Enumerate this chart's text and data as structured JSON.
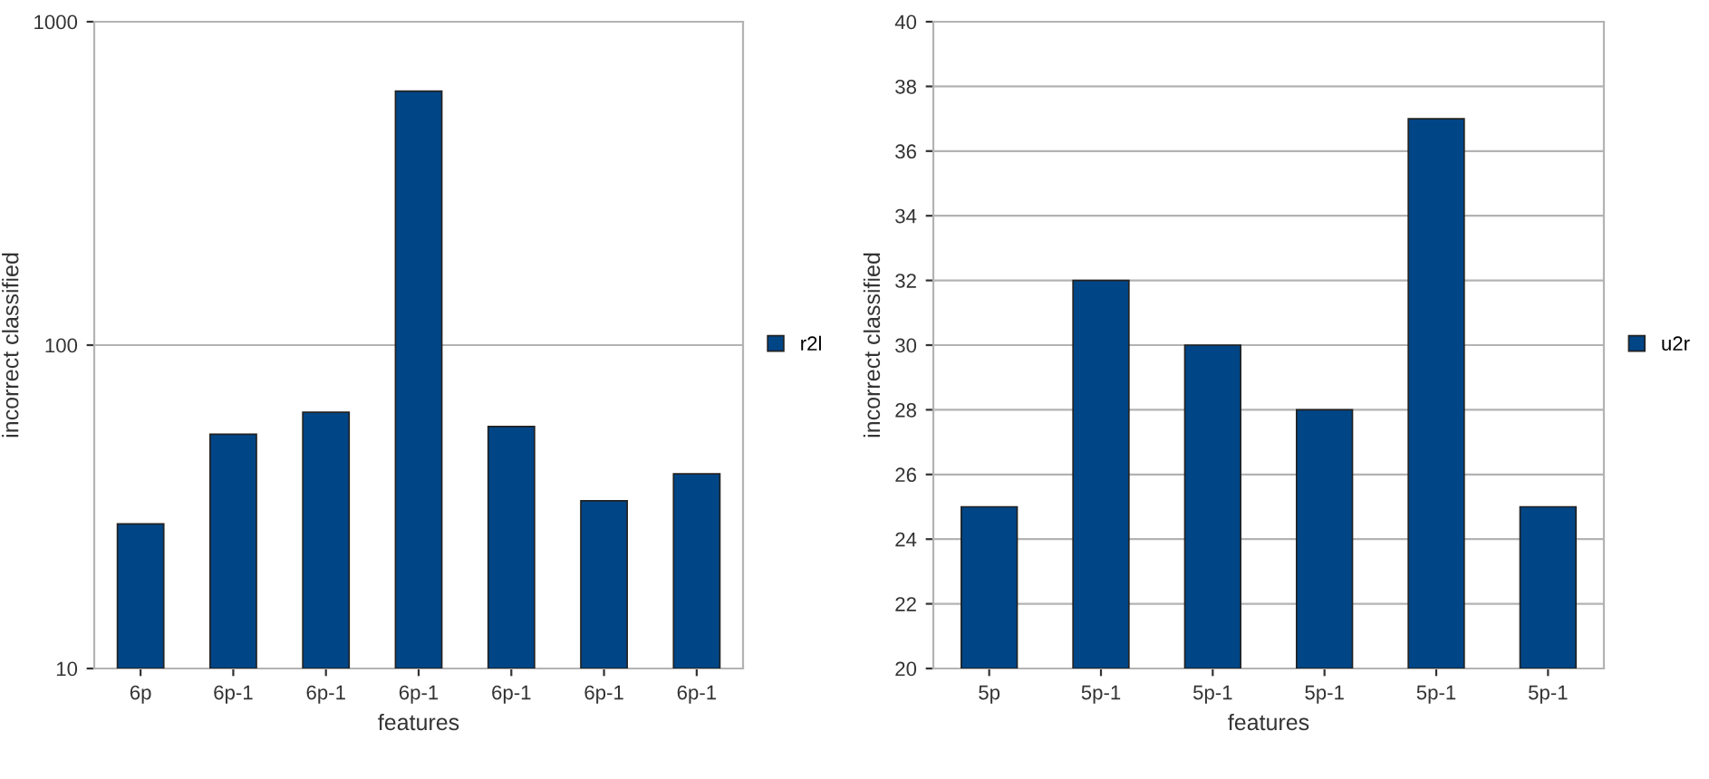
{
  "chart_data": [
    {
      "type": "bar",
      "xlabel": "features",
      "ylabel": "incorrect classified",
      "categories": [
        "6p",
        "6p-1",
        "6p-1",
        "6p-1",
        "6p-1",
        "6p-1",
        "6p-1"
      ],
      "series": [
        {
          "name": "r2l",
          "color": "#004586",
          "values": [
            28,
            53,
            62,
            610,
            56,
            33,
            40
          ]
        }
      ],
      "log": true,
      "ylim": [
        10,
        1000
      ],
      "yticks": [
        10,
        100,
        1000
      ],
      "grid": "y",
      "legend": "right"
    },
    {
      "type": "bar",
      "xlabel": "features",
      "ylabel": "incorrect classified",
      "categories": [
        "5p",
        "5p-1",
        "5p-1",
        "5p-1",
        "5p-1",
        "5p-1"
      ],
      "series": [
        {
          "name": "u2r",
          "color": "#004586",
          "values": [
            25,
            32,
            30,
            28,
            37,
            25
          ]
        }
      ],
      "ylim": [
        20,
        40
      ],
      "yticks": [
        20,
        22,
        24,
        26,
        28,
        30,
        32,
        34,
        36,
        38,
        40
      ],
      "grid": "y",
      "legend": "right"
    }
  ]
}
